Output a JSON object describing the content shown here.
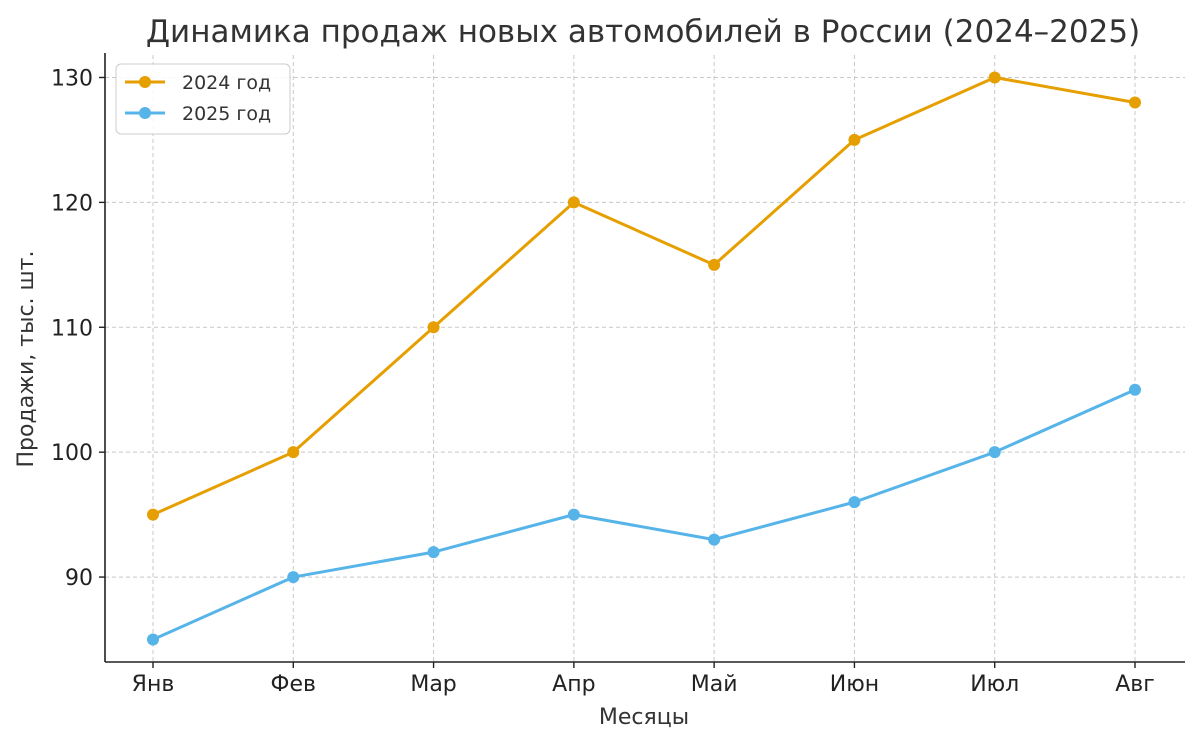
{
  "chart_data": {
    "type": "line",
    "title": "Динамика продаж новых автомобилей в России (2024–2025)",
    "xlabel": "Месяцы",
    "ylabel": "Продажи, тыс. шт.",
    "categories": [
      "Янв",
      "Фев",
      "Мар",
      "Апр",
      "Май",
      "Июн",
      "Июл",
      "Авг"
    ],
    "series": [
      {
        "name": "2024 год",
        "color": "#E69F00",
        "values": [
          95,
          100,
          110,
          120,
          115,
          125,
          130,
          128
        ]
      },
      {
        "name": "2025 год",
        "color": "#56B4E9",
        "values": [
          85,
          90,
          92,
          95,
          93,
          96,
          100,
          105
        ]
      }
    ],
    "yticks": [
      90,
      100,
      110,
      120,
      130
    ],
    "ylim": [
      83.2,
      131.8
    ],
    "grid": true,
    "legend_position": "top-left"
  }
}
